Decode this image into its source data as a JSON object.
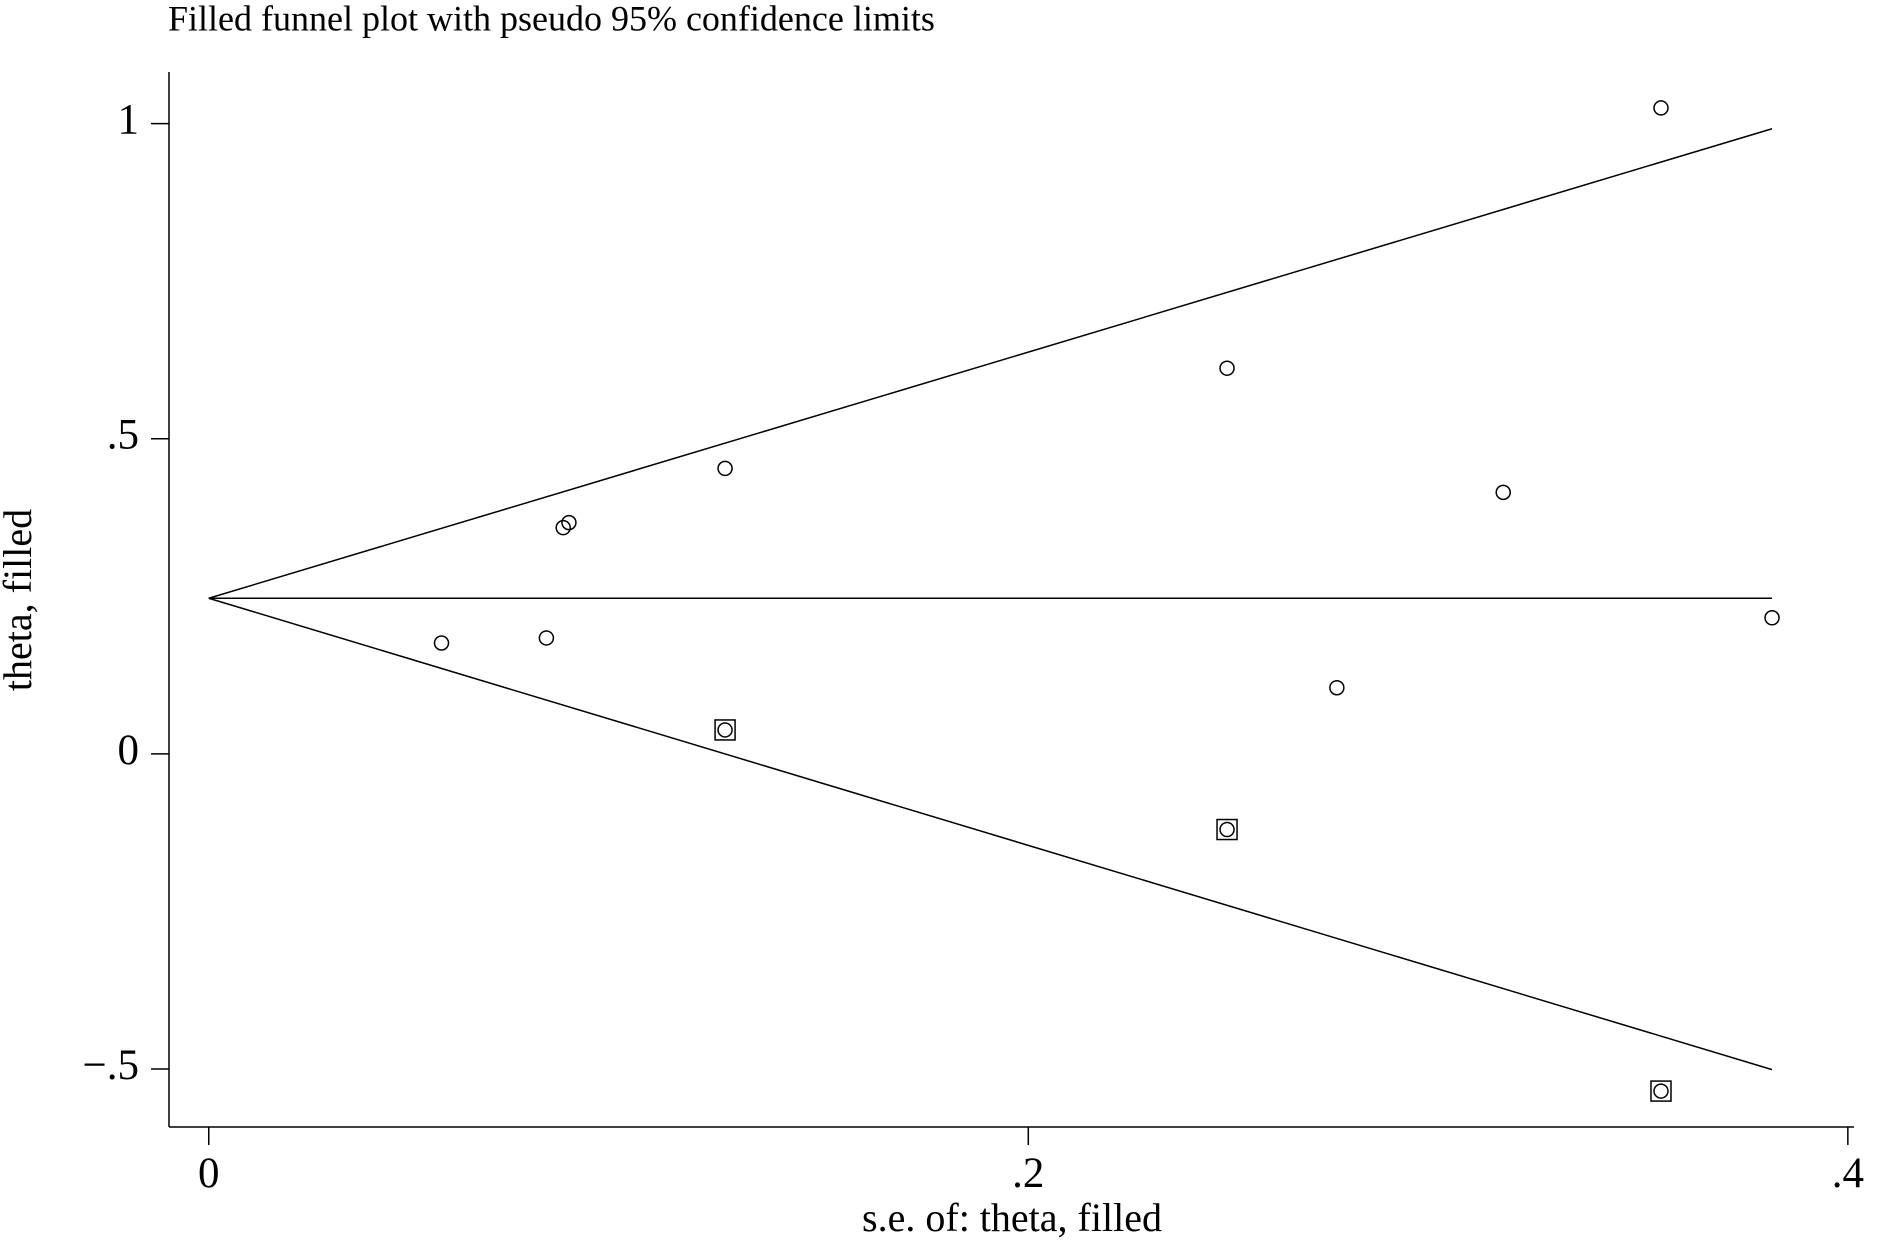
{
  "chart_data": {
    "type": "scatter",
    "title": "Filled funnel plot with pseudo 95% confidence limits",
    "xlabel": "s.e. of: theta, filled",
    "ylabel": "theta, filled",
    "xlim": [
      -0.0097,
      0.4015
    ],
    "ylim": [
      -0.592,
      1.082
    ],
    "xticks": [
      0,
      {
        "value": 0.2,
        "label": ".2"
      },
      {
        "value": 0.4,
        "label": ".4"
      }
    ],
    "yticks": [
      {
        "value": -0.5,
        "label": "−.5"
      },
      0,
      {
        "value": 0.5,
        "label": ".5"
      },
      1
    ],
    "series": [
      {
        "marker": "circle",
        "color": "#000000",
        "x": [
          0.0568,
          0.0824,
          0.0865,
          0.0879,
          0.126,
          0.2485,
          0.2753,
          0.3159,
          0.3544,
          0.3815
        ],
        "values": [
          0.176,
          0.184,
          0.359,
          0.367,
          0.453,
          0.612,
          0.105,
          0.415,
          1.025,
          0.216
        ]
      },
      {
        "marker": "square-circle",
        "color": "#000000",
        "x": [
          0.126,
          0.2485,
          0.3544
        ],
        "values": [
          0.038,
          -0.12,
          -0.535
        ]
      }
    ],
    "lines": [
      {
        "x": [
          0,
          0.3815
        ],
        "values": [
          0.247,
          0.992
        ]
      },
      {
        "x": [
          0,
          0.3815
        ],
        "values": [
          0.247,
          0.247
        ]
      },
      {
        "x": [
          0,
          0.3815
        ],
        "values": [
          0.247,
          -0.501
        ]
      }
    ]
  }
}
